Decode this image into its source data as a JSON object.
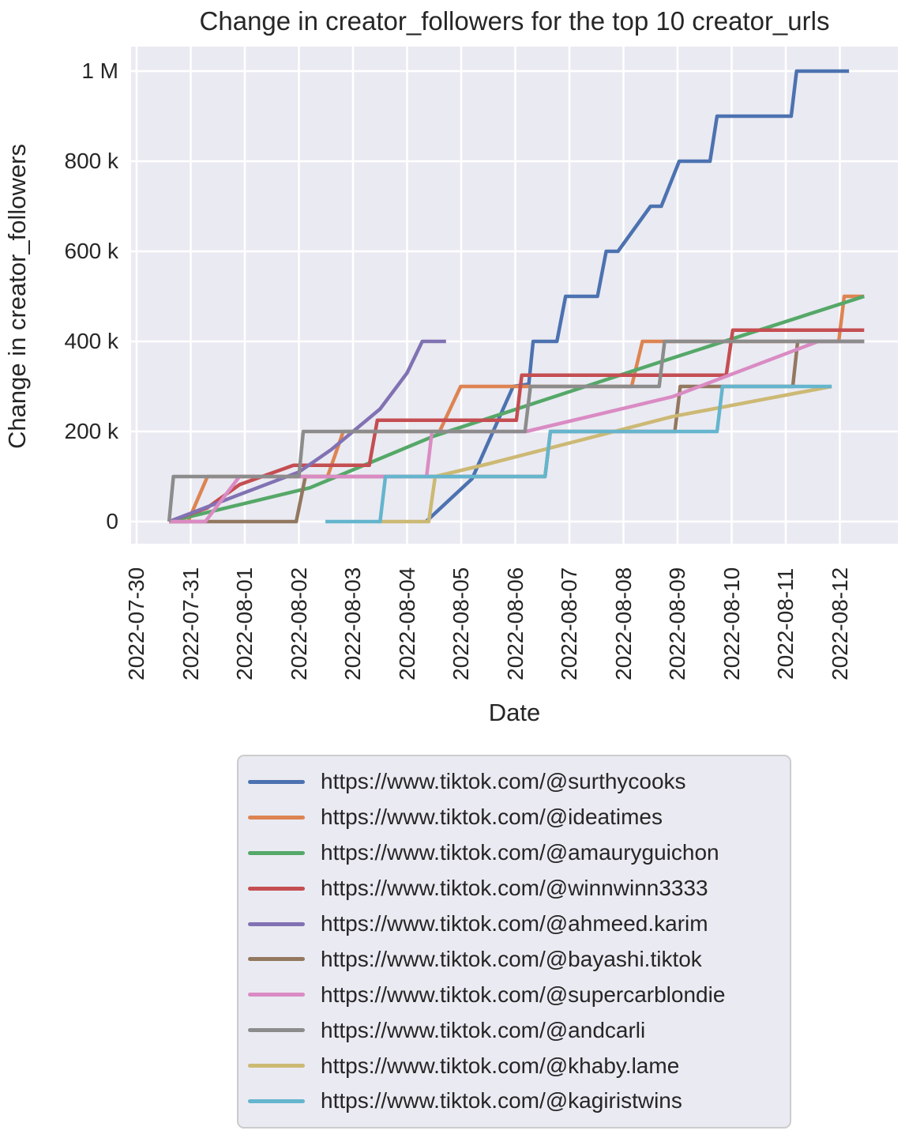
{
  "title": "Change in creator_followers for the top 10 creator_urls",
  "chart_data": {
    "type": "line",
    "title": "Change in creator_followers for the top 10 creator_urls",
    "xlabel": "Date",
    "ylabel": "Change in creator_followers",
    "grid": true,
    "legend_position": "below",
    "background": "#eaeaf2",
    "gridline_color": "#ffffff",
    "text_color": "#262626",
    "x_tick_labels": [
      "2022-07-30",
      "2022-07-31",
      "2022-08-01",
      "2022-08-02",
      "2022-08-03",
      "2022-08-04",
      "2022-08-05",
      "2022-08-06",
      "2022-08-07",
      "2022-08-08",
      "2022-08-09",
      "2022-08-10",
      "2022-08-11",
      "2022-08-12"
    ],
    "y_ticks": [
      {
        "value": 0,
        "label": "0"
      },
      {
        "value": 200000,
        "label": "200 k"
      },
      {
        "value": 400000,
        "label": "400 k"
      },
      {
        "value": 600000,
        "label": "600 k"
      },
      {
        "value": 800000,
        "label": "800 k"
      },
      {
        "value": 1000000,
        "label": "1 M"
      }
    ],
    "xlim_days_from_first_tick": [
      -0.1,
      14.07
    ],
    "ylim": [
      -50000,
      1055000
    ],
    "series": [
      {
        "name": "https://www.tiktok.com/@surthycooks",
        "color": "#4C72B0",
        "points": [
          [
            5.35,
            0
          ],
          [
            6.2,
            95000
          ],
          [
            6.96,
            300000
          ],
          [
            7.25,
            305000
          ],
          [
            7.33,
            400000
          ],
          [
            7.77,
            400000
          ],
          [
            7.93,
            500000
          ],
          [
            8.52,
            500000
          ],
          [
            8.68,
            600000
          ],
          [
            8.9,
            600000
          ],
          [
            9.5,
            700000
          ],
          [
            9.7,
            700000
          ],
          [
            10.03,
            800000
          ],
          [
            10.6,
            800000
          ],
          [
            10.73,
            900000
          ],
          [
            12.1,
            900000
          ],
          [
            12.2,
            1000000
          ],
          [
            13.17,
            1000000
          ]
        ]
      },
      {
        "name": "https://www.tiktok.com/@ideatimes",
        "color": "#DD8452",
        "points": [
          [
            0.6,
            0
          ],
          [
            0.95,
            0
          ],
          [
            1.31,
            100000
          ],
          [
            3.53,
            100000
          ],
          [
            3.82,
            200000
          ],
          [
            5.6,
            200000
          ],
          [
            5.99,
            300000
          ],
          [
            9.15,
            300000
          ],
          [
            9.35,
            400000
          ],
          [
            12.98,
            400000
          ],
          [
            13.08,
            500000
          ],
          [
            13.45,
            500000
          ]
        ]
      },
      {
        "name": "https://www.tiktok.com/@amauryguichon",
        "color": "#55A868",
        "points": [
          [
            0.6,
            0
          ],
          [
            3.2,
            75000
          ],
          [
            5.5,
            190000
          ],
          [
            9.7,
            355000
          ],
          [
            13.45,
            500000
          ]
        ]
      },
      {
        "name": "https://www.tiktok.com/@winnwinn3333",
        "color": "#C44E52",
        "points": [
          [
            0.6,
            0
          ],
          [
            1.3,
            30000
          ],
          [
            1.9,
            82000
          ],
          [
            2.9,
            125000
          ],
          [
            4.3,
            125000
          ],
          [
            4.45,
            225000
          ],
          [
            7.02,
            225000
          ],
          [
            7.12,
            325000
          ],
          [
            10.9,
            325000
          ],
          [
            11.02,
            425000
          ],
          [
            13.45,
            425000
          ]
        ]
      },
      {
        "name": "https://www.tiktok.com/@ahmeed.karim",
        "color": "#8172B3",
        "points": [
          [
            0.6,
            0
          ],
          [
            1.9,
            60000
          ],
          [
            3.0,
            110000
          ],
          [
            3.6,
            160000
          ],
          [
            4.5,
            250000
          ],
          [
            5.0,
            330000
          ],
          [
            5.28,
            400000
          ],
          [
            5.72,
            400000
          ]
        ]
      },
      {
        "name": "https://www.tiktok.com/@bayashi.tiktok",
        "color": "#937860",
        "points": [
          [
            0.6,
            0
          ],
          [
            2.95,
            0
          ],
          [
            3.12,
            100000
          ],
          [
            7.55,
            100000
          ],
          [
            7.65,
            200000
          ],
          [
            9.95,
            200000
          ],
          [
            10.05,
            300000
          ],
          [
            12.13,
            300000
          ],
          [
            12.22,
            400000
          ],
          [
            13.45,
            400000
          ]
        ]
      },
      {
        "name": "https://www.tiktok.com/@supercarblondie",
        "color": "#DA8BC3",
        "points": [
          [
            0.6,
            0
          ],
          [
            1.27,
            0
          ],
          [
            1.9,
            100000
          ],
          [
            5.36,
            100000
          ],
          [
            5.46,
            200000
          ],
          [
            7.2,
            200000
          ],
          [
            9.9,
            277000
          ],
          [
            12.6,
            400000
          ],
          [
            13.45,
            400000
          ]
        ]
      },
      {
        "name": "https://www.tiktok.com/@andcarli",
        "color": "#8C8C8C",
        "points": [
          [
            0.6,
            0
          ],
          [
            0.68,
            100000
          ],
          [
            3.0,
            100000
          ],
          [
            3.08,
            200000
          ],
          [
            7.18,
            200000
          ],
          [
            7.28,
            300000
          ],
          [
            9.66,
            300000
          ],
          [
            9.76,
            400000
          ],
          [
            13.45,
            400000
          ]
        ]
      },
      {
        "name": "https://www.tiktok.com/@khaby.lame",
        "color": "#CCB974",
        "points": [
          [
            4.5,
            0
          ],
          [
            5.4,
            0
          ],
          [
            5.52,
            100000
          ],
          [
            6.5,
            128000
          ],
          [
            9.9,
            233000
          ],
          [
            12.85,
            300000
          ]
        ]
      },
      {
        "name": "https://www.tiktok.com/@kagiristwins",
        "color": "#64B5CD",
        "points": [
          [
            3.49,
            0
          ],
          [
            4.5,
            0
          ],
          [
            4.6,
            100000
          ],
          [
            7.55,
            100000
          ],
          [
            7.65,
            200000
          ],
          [
            10.73,
            200000
          ],
          [
            10.83,
            300000
          ],
          [
            12.85,
            300000
          ]
        ]
      }
    ]
  }
}
